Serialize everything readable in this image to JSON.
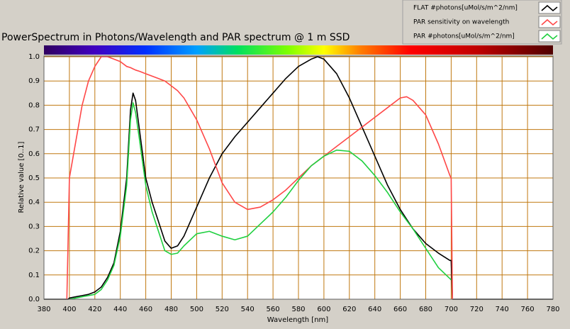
{
  "chart_data": {
    "type": "line",
    "title": "PowerSpectrum in Photons/Wavelength and PAR spectrum @ 1 m SSD",
    "x_label": "Wavelength [nm]",
    "y_label": "Relative value [0..1]",
    "x": [
      380,
      390,
      398,
      399,
      400,
      405,
      410,
      415,
      420,
      425,
      430,
      435,
      440,
      445,
      448,
      450,
      452,
      455,
      460,
      465,
      470,
      475,
      480,
      485,
      490,
      500,
      510,
      520,
      530,
      540,
      550,
      560,
      570,
      580,
      590,
      595,
      600,
      610,
      620,
      630,
      640,
      650,
      660,
      665,
      670,
      680,
      690,
      699,
      700,
      701,
      710,
      720,
      730,
      740,
      750,
      760,
      770,
      780
    ],
    "series": [
      {
        "name": "FLAT #photons[uMol/s/m^2/nm]",
        "color": "#000000",
        "values": [
          0,
          0,
          0,
          0,
          0.005,
          0.01,
          0.015,
          0.02,
          0.03,
          0.05,
          0.09,
          0.15,
          0.28,
          0.5,
          0.78,
          0.85,
          0.82,
          0.7,
          0.5,
          0.4,
          0.32,
          0.24,
          0.21,
          0.22,
          0.26,
          0.38,
          0.5,
          0.6,
          0.67,
          0.73,
          0.79,
          0.85,
          0.91,
          0.96,
          0.99,
          1.0,
          0.99,
          0.93,
          0.83,
          0.71,
          0.59,
          0.47,
          0.37,
          0.33,
          0.29,
          0.23,
          0.19,
          0.16,
          0.16,
          0,
          0,
          0,
          0,
          0,
          0,
          0,
          0,
          0
        ]
      },
      {
        "name": "PAR sensitivity on wavelength",
        "color": "#ff4848",
        "values": [
          null,
          null,
          0,
          0.25,
          0.5,
          0.65,
          0.8,
          0.9,
          0.96,
          1.0,
          1.0,
          0.99,
          0.98,
          0.96,
          0.955,
          0.95,
          0.945,
          0.94,
          0.93,
          0.92,
          0.91,
          0.9,
          0.88,
          0.86,
          0.83,
          0.74,
          0.62,
          0.48,
          0.4,
          0.37,
          0.38,
          0.41,
          0.45,
          0.5,
          0.55,
          0.57,
          0.59,
          0.63,
          0.67,
          0.71,
          0.75,
          0.79,
          0.83,
          0.835,
          0.82,
          0.76,
          0.64,
          0.51,
          0.5,
          0,
          null,
          null,
          null,
          null,
          null,
          null,
          null,
          null
        ]
      },
      {
        "name": "PAR #photons[uMol/s/m^2/nm]",
        "color": "#20d040",
        "values": [
          null,
          null,
          null,
          null,
          0,
          0.005,
          0.01,
          0.015,
          0.02,
          0.04,
          0.08,
          0.14,
          0.26,
          0.47,
          0.74,
          0.81,
          0.77,
          0.66,
          0.47,
          0.36,
          0.28,
          0.2,
          0.185,
          0.19,
          0.22,
          0.27,
          0.28,
          0.26,
          0.245,
          0.26,
          0.31,
          0.36,
          0.42,
          0.49,
          0.55,
          0.57,
          0.59,
          0.615,
          0.61,
          0.57,
          0.51,
          0.44,
          0.36,
          0.325,
          0.29,
          0.21,
          0.13,
          0.085,
          0.08,
          null,
          null,
          null,
          null,
          null,
          null,
          null,
          null,
          null
        ]
      }
    ],
    "xlim": [
      380,
      780
    ],
    "xticks": [
      380,
      400,
      420,
      440,
      460,
      480,
      500,
      520,
      540,
      560,
      580,
      600,
      620,
      640,
      660,
      680,
      700,
      720,
      740,
      760,
      780
    ],
    "ylim": [
      0,
      1
    ],
    "yticks": [
      {
        "value": 0,
        "label": "0.0"
      },
      0.1,
      0.2,
      0.3,
      0.4,
      0.5,
      0.6,
      0.7,
      0.8,
      0.9,
      {
        "value": 1,
        "label": "1.0"
      }
    ],
    "grid": true,
    "grid_color": "#c07810"
  }
}
